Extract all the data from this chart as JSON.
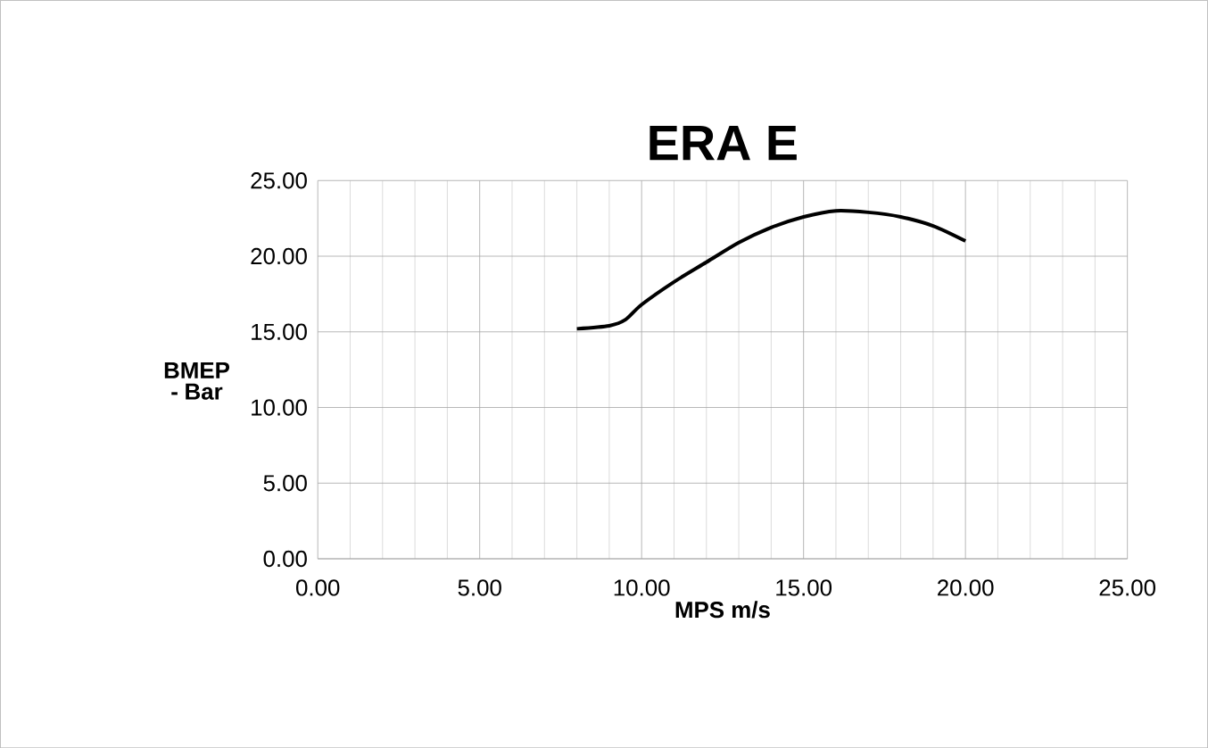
{
  "chart_data": {
    "type": "line",
    "title": "ERA  E",
    "xlabel": "MPS m/s",
    "ylabel": "BMEP - Bar",
    "x": [
      8,
      9,
      9.5,
      10,
      11,
      12,
      13,
      14,
      15,
      16,
      17,
      18,
      19,
      20
    ],
    "series": [
      {
        "color": "#000000",
        "values": [
          15.2,
          15.4,
          15.8,
          16.8,
          18.3,
          19.6,
          20.9,
          21.9,
          22.6,
          23.0,
          22.9,
          22.6,
          22.0,
          21.0
        ]
      }
    ],
    "xlim": [
      0,
      25
    ],
    "ylim": [
      0,
      25
    ],
    "xticks": [
      {
        "value": 0,
        "label": "0.00"
      },
      {
        "value": 5,
        "label": "5.00"
      },
      {
        "value": 10,
        "label": "10.00"
      },
      {
        "value": 15,
        "label": "15.00"
      },
      {
        "value": 20,
        "label": "20.00"
      },
      {
        "value": 25,
        "label": "25.00"
      }
    ],
    "yticks": [
      {
        "value": 0,
        "label": "0.00"
      },
      {
        "value": 5,
        "label": "5.00"
      },
      {
        "value": 10,
        "label": "10.00"
      },
      {
        "value": 15,
        "label": "15.00"
      },
      {
        "value": 20,
        "label": "20.00"
      },
      {
        "value": 25,
        "label": "25.00"
      }
    ],
    "grid": true,
    "marker": "none",
    "line_style": "solid"
  }
}
